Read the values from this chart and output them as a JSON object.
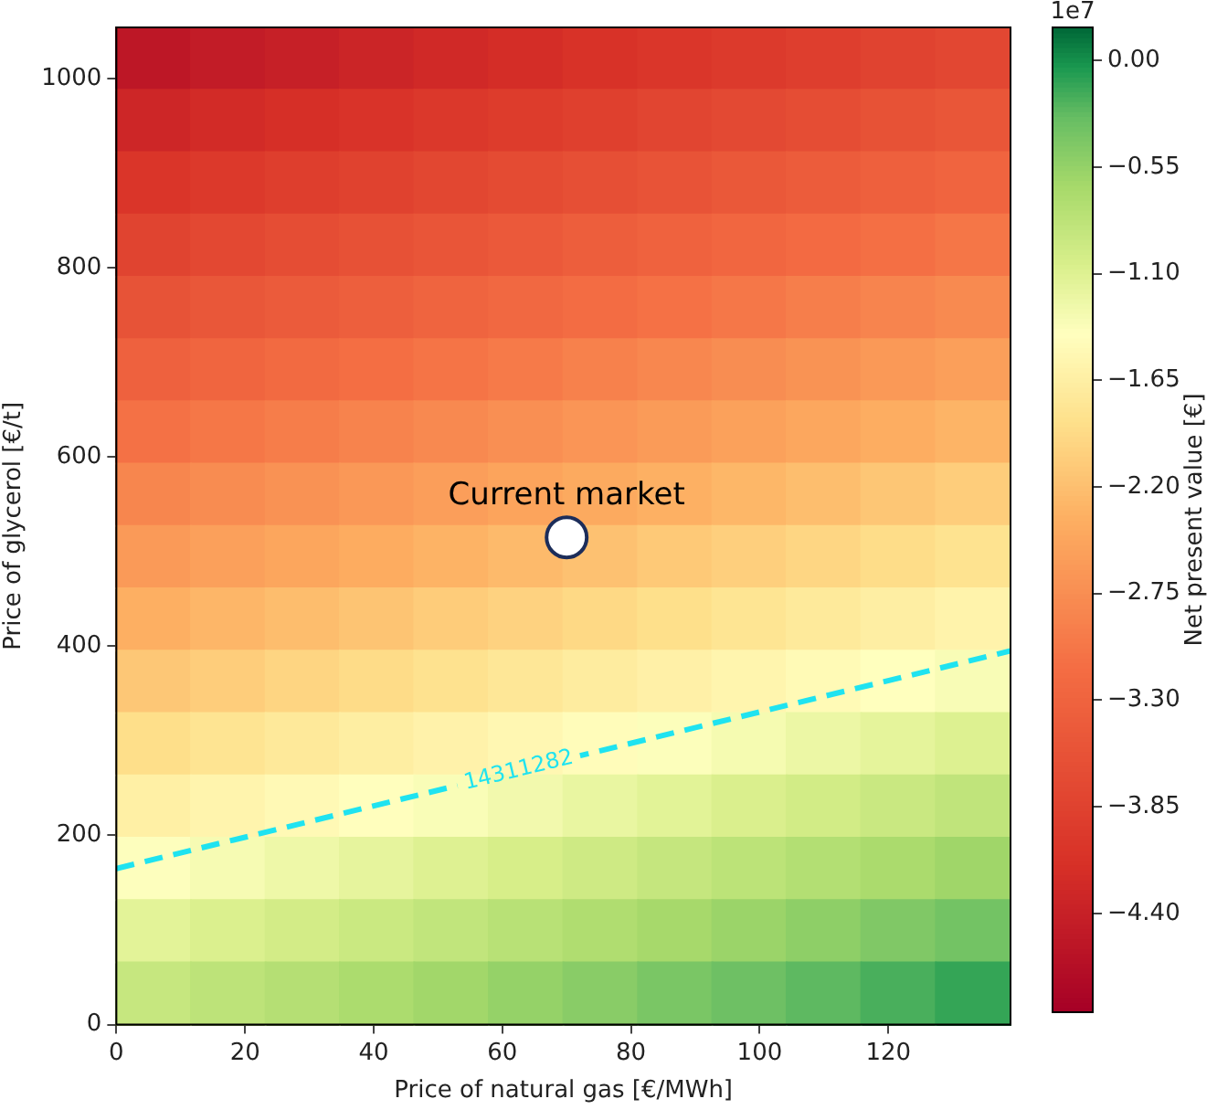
{
  "chart_data": {
    "type": "heatmap",
    "xlabel": "Price of natural gas [€/MWh]",
    "ylabel": "Price of glycerol [€/t]",
    "clabel": "Net present value [€]",
    "xlim": [
      0,
      139
    ],
    "ylim": [
      0,
      1054
    ],
    "xticks": [
      0,
      20,
      40,
      60,
      80,
      100,
      120
    ],
    "yticks": [
      0,
      200,
      400,
      600,
      800,
      1000
    ],
    "x": [
      5.8,
      17.4,
      29,
      40.5,
      52.1,
      63.7,
      75.3,
      86.9,
      98.4,
      110,
      121.6,
      133.2
    ],
    "cells": [
      [
        -4.54,
        -4.47,
        -4.4,
        -4.33,
        -4.26,
        -4.19,
        -4.12,
        -4.05,
        -3.98,
        -3.91,
        -3.83,
        -3.76
      ],
      [
        -4.3,
        -4.23,
        -4.16,
        -4.09,
        -4.02,
        -3.95,
        -3.88,
        -3.8,
        -3.73,
        -3.66,
        -3.59,
        -3.52
      ],
      [
        -4.06,
        -3.99,
        -3.92,
        -3.85,
        -3.77,
        -3.7,
        -3.63,
        -3.56,
        -3.49,
        -3.42,
        -3.35,
        -3.28
      ],
      [
        -3.82,
        -3.74,
        -3.67,
        -3.6,
        -3.53,
        -3.46,
        -3.39,
        -3.32,
        -3.25,
        -3.18,
        -3.11,
        -3.03
      ],
      [
        -3.57,
        -3.5,
        -3.43,
        -3.36,
        -3.29,
        -3.22,
        -3.15,
        -3.08,
        -3.01,
        -2.93,
        -2.86,
        -2.79
      ],
      [
        -3.33,
        -3.26,
        -3.19,
        -3.12,
        -3.05,
        -2.98,
        -2.9,
        -2.83,
        -2.76,
        -2.69,
        -2.62,
        -2.55
      ],
      [
        -3.09,
        -3.02,
        -2.95,
        -2.87,
        -2.8,
        -2.73,
        -2.66,
        -2.59,
        -2.52,
        -2.45,
        -2.38,
        -2.31
      ],
      [
        -2.84,
        -2.77,
        -2.7,
        -2.63,
        -2.56,
        -2.49,
        -2.42,
        -2.35,
        -2.28,
        -2.21,
        -2.13,
        -2.06
      ],
      [
        -2.6,
        -2.53,
        -2.46,
        -2.39,
        -2.32,
        -2.25,
        -2.18,
        -2.1,
        -2.03,
        -1.96,
        -1.89,
        -1.82
      ],
      [
        -2.36,
        -2.29,
        -2.22,
        -2.15,
        -2.07,
        -2.0,
        -1.93,
        -1.86,
        -1.79,
        -1.72,
        -1.65,
        -1.58
      ],
      [
        -2.12,
        -2.05,
        -1.97,
        -1.9,
        -1.83,
        -1.76,
        -1.69,
        -1.62,
        -1.55,
        -1.48,
        -1.41,
        -1.34
      ],
      [
        -1.87,
        -1.8,
        -1.73,
        -1.66,
        -1.59,
        -1.52,
        -1.45,
        -1.38,
        -1.31,
        -1.23,
        -1.16,
        -1.09
      ],
      [
        -1.63,
        -1.56,
        -1.49,
        -1.42,
        -1.35,
        -1.28,
        -1.2,
        -1.13,
        -1.06,
        -0.99,
        -0.92,
        -0.85
      ],
      [
        -1.39,
        -1.32,
        -1.25,
        -1.17,
        -1.1,
        -1.03,
        -0.96,
        -0.89,
        -0.82,
        -0.75,
        -0.68,
        -0.61
      ],
      [
        -1.14,
        -1.07,
        -1.0,
        -0.93,
        -0.86,
        -0.79,
        -0.72,
        -0.65,
        -0.58,
        -0.51,
        -0.43,
        -0.36
      ],
      [
        -0.9,
        -0.83,
        -0.76,
        -0.69,
        -0.62,
        -0.55,
        -0.48,
        -0.4,
        -0.33,
        -0.26,
        -0.19,
        -0.12
      ]
    ],
    "clim": [
      -4.91,
      0.17
    ],
    "cticks": [
      {
        "value": 0,
        "label": "0.00"
      },
      {
        "value": -0.55,
        "label": "−0.55"
      },
      {
        "value": -1.1,
        "label": "−1.10"
      },
      {
        "value": -1.65,
        "label": "−1.65"
      },
      {
        "value": -2.2,
        "label": "−2.20"
      },
      {
        "value": -2.75,
        "label": "−2.75"
      },
      {
        "value": -3.3,
        "label": "−3.30"
      },
      {
        "value": -3.85,
        "label": "−3.85"
      },
      {
        "value": -4.4,
        "label": "−4.40"
      }
    ],
    "series": [
      {
        "type": "line",
        "name": "14311282",
        "color": "#1fe3f0",
        "line_style": "dashed",
        "marker": "none",
        "x": [
          0,
          139
        ],
        "values": [
          165,
          395
        ]
      },
      {
        "type": "scatter",
        "name": "Current market",
        "color": "#ffffff",
        "marker": "circle",
        "x": [
          70
        ],
        "values": [
          515
        ]
      }
    ],
    "annotations": [
      "1e7"
    ]
  }
}
